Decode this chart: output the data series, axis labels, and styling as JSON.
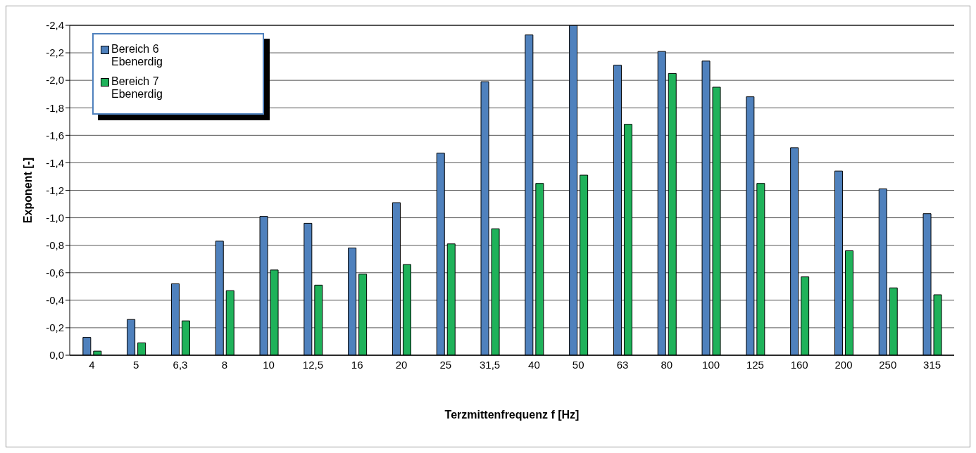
{
  "chart_data": {
    "type": "bar",
    "xlabel": "Terzmittenfrequenz f [Hz]",
    "ylabel": "Exponent [-]",
    "categories": [
      "4",
      "5",
      "6,3",
      "8",
      "10",
      "12,5",
      "16",
      "20",
      "25",
      "31,5",
      "40",
      "50",
      "63",
      "80",
      "100",
      "125",
      "160",
      "200",
      "250",
      "315"
    ],
    "series": [
      {
        "name": "Bereich 6 Ebenerdig",
        "color": "#4f81bd",
        "values": [
          -0.13,
          -0.26,
          -0.52,
          -0.83,
          -1.01,
          -0.96,
          -0.78,
          -1.11,
          -1.47,
          -1.99,
          -2.33,
          -2.4,
          -2.11,
          -2.21,
          -2.14,
          -1.88,
          -1.51,
          -1.34,
          -1.21,
          -1.03
        ]
      },
      {
        "name": "Bereich 7 Ebenerdig",
        "color": "#1fb25a",
        "values": [
          -0.03,
          -0.09,
          -0.25,
          -0.47,
          -0.62,
          -0.51,
          -0.59,
          -0.66,
          -0.81,
          -0.92,
          -1.25,
          -1.31,
          -1.68,
          -2.05,
          -1.95,
          -1.25,
          -0.57,
          -0.76,
          -0.49,
          -0.44
        ]
      }
    ],
    "ylim": [
      0,
      -2.4
    ],
    "yticks": [
      {
        "value": 0,
        "label": "0,0"
      },
      {
        "value": -0.2,
        "label": "-0,2"
      },
      {
        "value": -0.4,
        "label": "-0,4"
      },
      {
        "value": -0.6,
        "label": "-0,6"
      },
      {
        "value": -0.8,
        "label": "-0,8"
      },
      {
        "value": -1.0,
        "label": "-1,0"
      },
      {
        "value": -1.2,
        "label": "-1,2"
      },
      {
        "value": -1.4,
        "label": "-1,4"
      },
      {
        "value": -1.6,
        "label": "-1,6"
      },
      {
        "value": -1.8,
        "label": "-1,8"
      },
      {
        "value": -2.0,
        "label": "-2,0"
      },
      {
        "value": -2.2,
        "label": "-2,2"
      },
      {
        "value": -2.4,
        "label": "-2,4"
      }
    ],
    "grid": "y",
    "legend": "top left"
  }
}
